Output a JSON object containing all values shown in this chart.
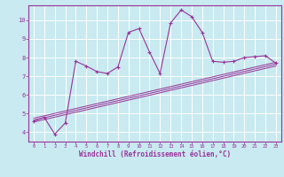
{
  "background_color": "#c8eaf0",
  "grid_color": "#b0d8e0",
  "line_color": "#993399",
  "xlabel": "Windchill (Refroidissement éolien,°C)",
  "xlim": [
    -0.5,
    23.5
  ],
  "ylim": [
    3.5,
    10.8
  ],
  "xticks": [
    0,
    1,
    2,
    3,
    4,
    5,
    6,
    7,
    8,
    9,
    10,
    11,
    12,
    13,
    14,
    15,
    16,
    17,
    18,
    19,
    20,
    21,
    22,
    23
  ],
  "yticks": [
    4,
    5,
    6,
    7,
    8,
    9,
    10
  ],
  "main_x": [
    0,
    1,
    2,
    3,
    4,
    5,
    6,
    7,
    8,
    9,
    10,
    11,
    12,
    13,
    14,
    15,
    16,
    17,
    18,
    19,
    20,
    21,
    22,
    23
  ],
  "main_y": [
    4.6,
    4.8,
    3.9,
    4.5,
    7.8,
    7.55,
    7.25,
    7.15,
    7.5,
    9.35,
    9.55,
    8.3,
    7.15,
    9.85,
    10.55,
    10.2,
    9.35,
    7.8,
    7.75,
    7.8,
    8.0,
    8.05,
    8.1,
    7.7
  ],
  "line1_x": [
    0,
    23
  ],
  "line1_y": [
    4.55,
    7.55
  ],
  "line2_x": [
    0,
    23
  ],
  "line2_y": [
    4.65,
    7.65
  ],
  "line3_x": [
    0,
    23
  ],
  "line3_y": [
    4.75,
    7.75
  ]
}
